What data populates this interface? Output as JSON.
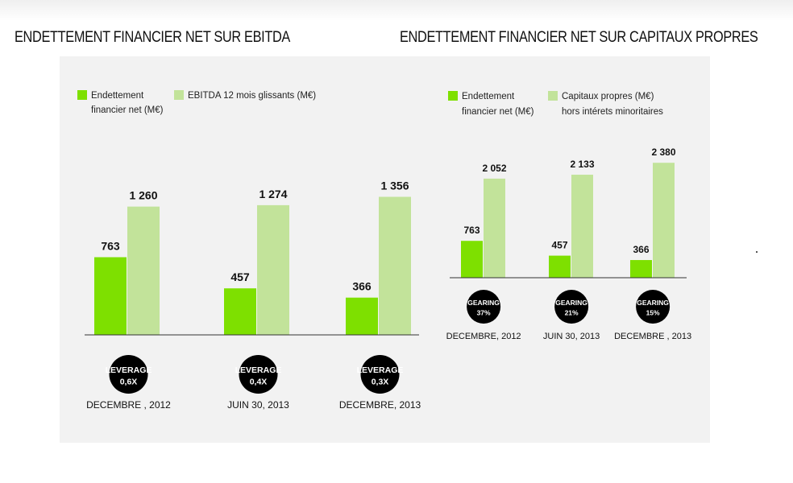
{
  "headings": {
    "left": "ENDETTEMENT FINANCIER NET SUR EBITDA",
    "right": "ENDETTEMENT FINANCIER NET SUR CAPITAUX PROPRES"
  },
  "colors": {
    "panel": "#f2f2f2",
    "debt": "#7ee000",
    "equity": "#c2e39a",
    "badge": "#000000",
    "axis": "#333333"
  },
  "chart_data": [
    {
      "type": "bar",
      "title": "ENDETTEMENT FINANCIER NET SUR EBITDA",
      "categories": [
        "DECEMBRE , 2012",
        "JUIN 30, 2013",
        "DECEMBRE, 2013"
      ],
      "series": [
        {
          "name": "Endettement financier net (M€)",
          "legend_lines": [
            "Endettement",
            "financier net (M€)"
          ],
          "color": "#7ee000",
          "values": [
            763,
            457,
            366
          ],
          "labels": [
            "763",
            "457",
            "366"
          ]
        },
        {
          "name": "EBITDA 12 mois glissants (M€)",
          "legend_lines": [
            "EBITDA 12 mois glissants (M€)"
          ],
          "color": "#c2e39a",
          "values": [
            1260,
            1274,
            1356
          ],
          "labels": [
            "1 260",
            "1 274",
            "1 356"
          ]
        }
      ],
      "badges": [
        {
          "label": "LEVERAGE",
          "value": "0,6X"
        },
        {
          "label": "LEVERAGE",
          "value": "0,4X"
        },
        {
          "label": "LEVERAGE",
          "value": "0,3X"
        }
      ],
      "ylim": [
        0,
        1700
      ],
      "legend": "top-left",
      "grid": false
    },
    {
      "type": "bar",
      "title": "ENDETTEMENT FINANCIER NET SUR CAPITAUX PROPRES",
      "categories": [
        "DECEMBRE, 2012",
        "JUIN 30, 2013",
        "DECEMBRE , 2013"
      ],
      "series": [
        {
          "name": "Endettement financier net (M€)",
          "legend_lines": [
            "Endettement",
            "financier net (M€)"
          ],
          "color": "#7ee000",
          "values": [
            763,
            457,
            366
          ],
          "labels": [
            "763",
            "457",
            "366"
          ]
        },
        {
          "name": "Capitaux propres (M€) hors intérets minoritaires",
          "legend_lines": [
            "Capitaux propres (M€)",
            "hors intérets minoritaires"
          ],
          "color": "#c2e39a",
          "values": [
            2052,
            2133,
            2380
          ],
          "labels": [
            "2 052",
            "2 133",
            "2 380"
          ]
        }
      ],
      "badges": [
        {
          "label": "GEARING",
          "value": "37%"
        },
        {
          "label": "GEARING",
          "value": "21%"
        },
        {
          "label": "GEARING",
          "value": "15%"
        }
      ],
      "ylim": [
        0,
        3000
      ],
      "legend": "top-left",
      "grid": false
    }
  ]
}
